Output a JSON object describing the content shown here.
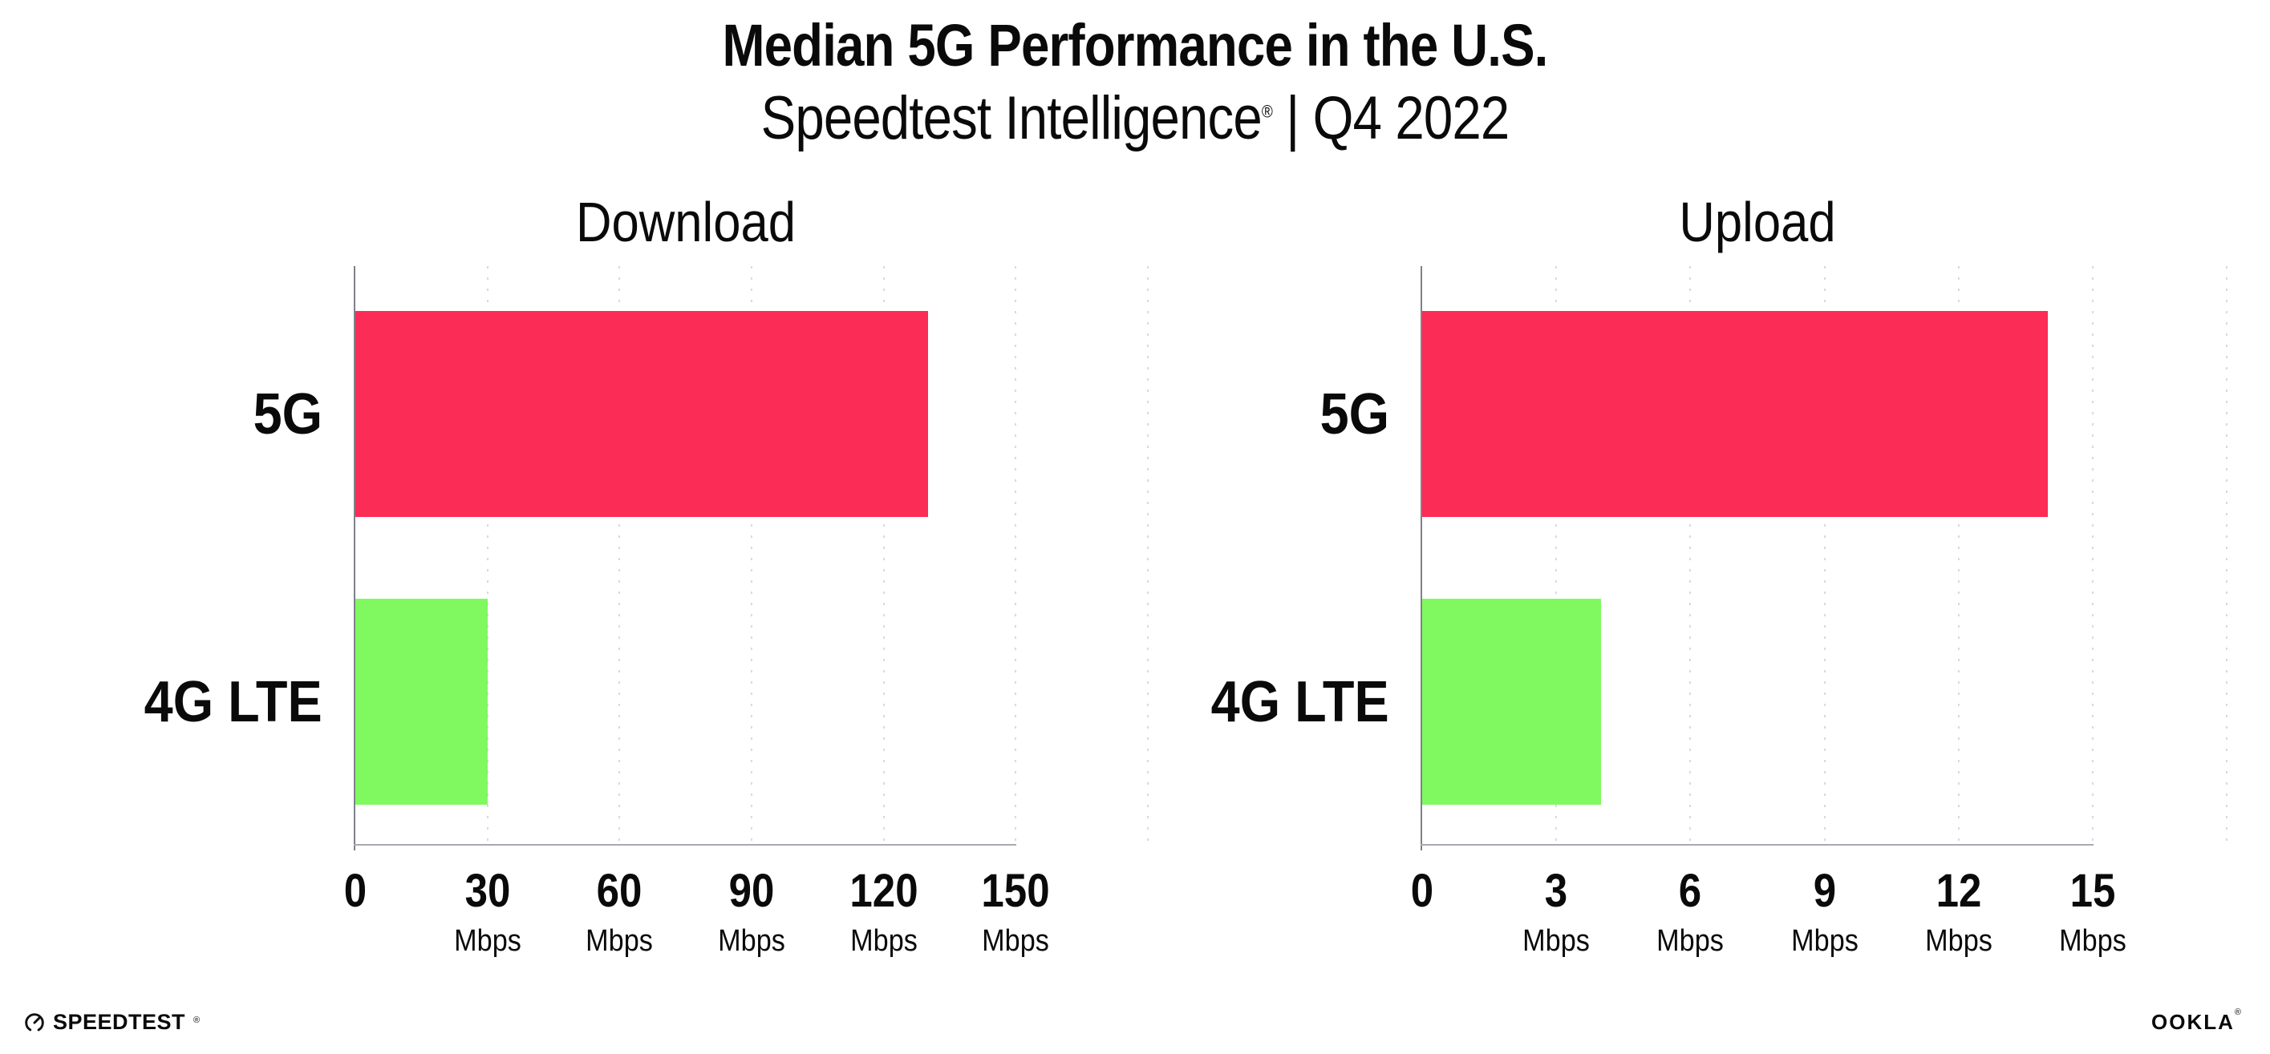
{
  "header": {
    "title": "Median 5G Performance in the U.S.",
    "subtitle": {
      "brand": "Speedtest Intelligence",
      "reg_mark": "®",
      "rest": " | Q4 2022"
    }
  },
  "chart_data": [
    {
      "type": "bar",
      "orientation": "horizontal",
      "title": "Download",
      "categories": [
        "5G",
        "4G LTE"
      ],
      "values": [
        130,
        30
      ],
      "unit": "Mbps",
      "xlim": [
        0,
        180
      ],
      "xticks": [
        0,
        30,
        60,
        90,
        120,
        150
      ],
      "bar_colors": [
        "#fb2c56",
        "#7ff95f"
      ],
      "grid": "vertical-dotted",
      "legend": "none"
    },
    {
      "type": "bar",
      "orientation": "horizontal",
      "title": "Upload",
      "categories": [
        "5G",
        "4G LTE"
      ],
      "values": [
        14,
        4
      ],
      "unit": "Mbps",
      "xlim": [
        0,
        18
      ],
      "xticks": [
        0,
        3,
        6,
        9,
        12,
        15
      ],
      "bar_colors": [
        "#fb2c56",
        "#7ff95f"
      ],
      "grid": "vertical-dotted",
      "legend": "none"
    }
  ],
  "footer": {
    "speedtest_wordmark": "SPEEDTEST",
    "speedtest_reg": "®",
    "ookla_wordmark": "OOKLA",
    "ookla_reg": "®"
  },
  "colors": {
    "bar_5g": "#fb2c56",
    "bar_4g_lte": "#7ff95f",
    "axis_y": "#80808a",
    "axis_x": "#a9a9b0",
    "gridline": "#d9d9e2",
    "text": "#0a0a0a",
    "background": "#ffffff"
  }
}
